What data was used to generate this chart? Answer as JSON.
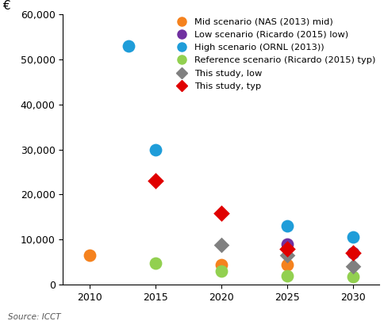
{
  "series": [
    {
      "name": "Mid scenario (NAS (2013) mid)",
      "color": "#F5821E",
      "marker": "o",
      "markersize": 130,
      "points": [
        [
          2010,
          6500
        ],
        [
          2020,
          4500
        ],
        [
          2025,
          4500
        ]
      ]
    },
    {
      "name": "Low scenario (Ricardo (2015) low)",
      "color": "#7030A0",
      "marker": "o",
      "markersize": 130,
      "points": [
        [
          2025,
          9000
        ],
        [
          2030,
          7000
        ]
      ]
    },
    {
      "name": "High scenario (ORNL (2013))",
      "color": "#1F9DD9",
      "marker": "o",
      "markersize": 130,
      "points": [
        [
          2013,
          53000
        ],
        [
          2015,
          30000
        ],
        [
          2025,
          13000
        ],
        [
          2030,
          10500
        ]
      ]
    },
    {
      "name": "Reference scenario (Ricardo (2015) typ)",
      "color": "#92D050",
      "marker": "o",
      "markersize": 130,
      "points": [
        [
          2015,
          4800
        ],
        [
          2020,
          3000
        ],
        [
          2025,
          2000
        ],
        [
          2030,
          1800
        ]
      ]
    },
    {
      "name": "This study, low",
      "color": "#808080",
      "marker": "D",
      "markersize": 100,
      "points": [
        [
          2020,
          8800
        ],
        [
          2025,
          6500
        ],
        [
          2030,
          4000
        ]
      ]
    },
    {
      "name": "This study, typ",
      "color": "#E00000",
      "marker": "D",
      "markersize": 110,
      "points": [
        [
          2015,
          23000
        ],
        [
          2020,
          15800
        ],
        [
          2025,
          8000
        ],
        [
          2030,
          7000
        ]
      ]
    }
  ],
  "ylabel": "€",
  "ylim": [
    0,
    60000
  ],
  "xlim": [
    2008,
    2032
  ],
  "yticks": [
    0,
    10000,
    20000,
    30000,
    40000,
    50000,
    60000
  ],
  "ytick_labels": [
    "0",
    "10,000",
    "20,000",
    "30,000",
    "40,000",
    "50,000",
    "60,000"
  ],
  "xticks": [
    2010,
    2015,
    2020,
    2025,
    2030
  ],
  "source_text": "Source: ICCT",
  "background_color": "#ffffff",
  "legend_fontsize": 8.2,
  "axis_fontsize": 9,
  "legend_marker_circle_size": 8,
  "legend_marker_diamond_size": 7
}
